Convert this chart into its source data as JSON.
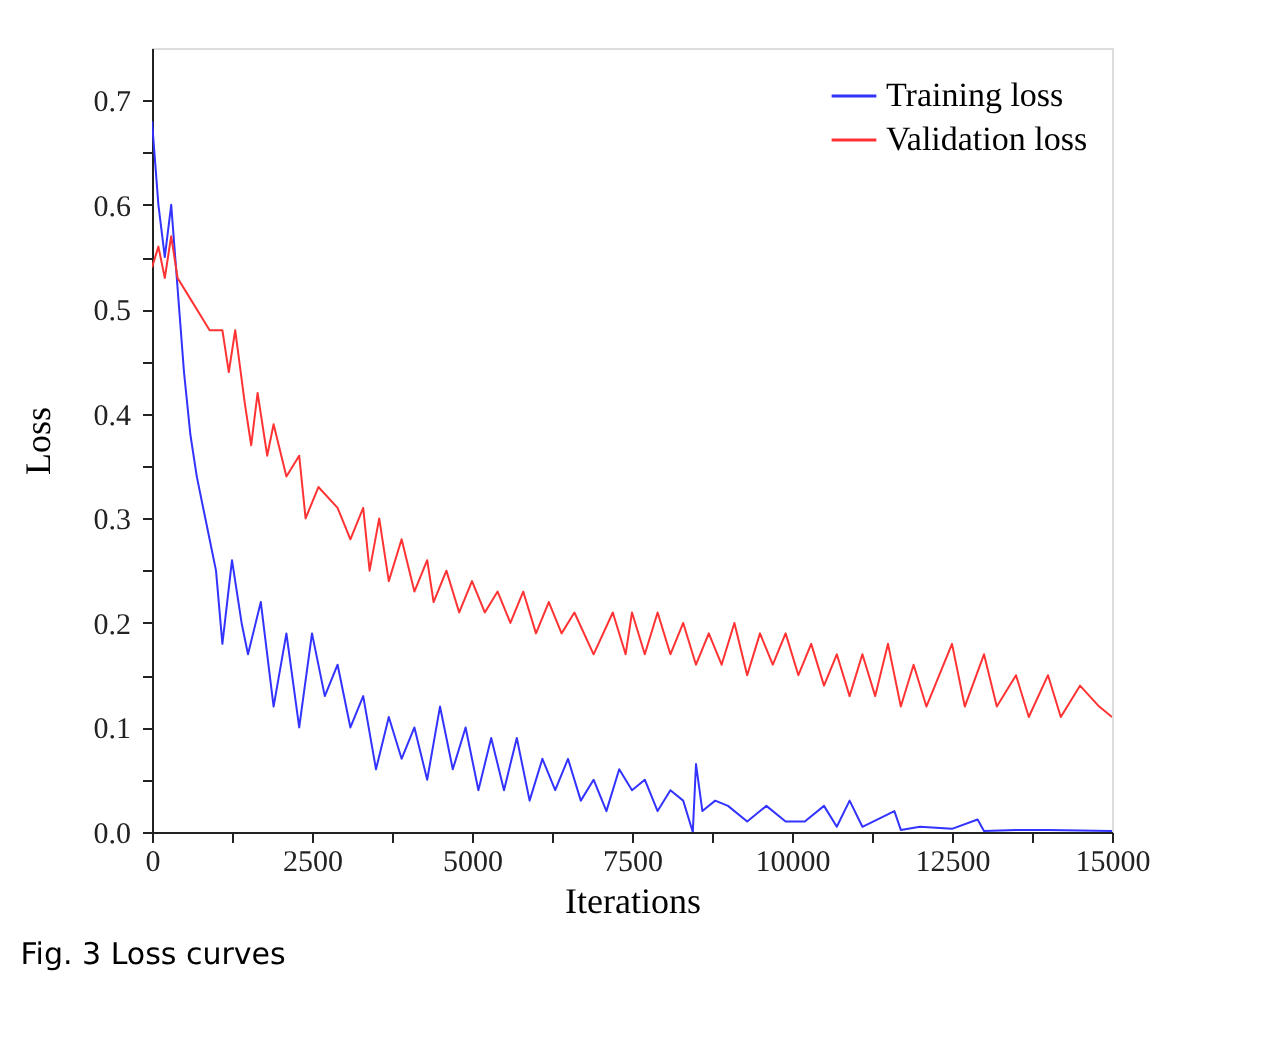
{
  "chart_data": {
    "type": "line",
    "xlabel": "Iterations",
    "ylabel": "Loss",
    "annotations": [
      "Fig. 3  Loss curves"
    ],
    "xlim": [
      0,
      15000
    ],
    "xticks": [
      0,
      {
        "value": 1250,
        "label": null
      },
      2500,
      {
        "value": 3750,
        "label": null
      },
      5000,
      {
        "value": 6250,
        "label": null
      },
      7500,
      {
        "value": 8750,
        "label": null
      },
      10000,
      {
        "value": 11250,
        "label": null
      },
      12500,
      {
        "value": 13750,
        "label": null
      },
      15000
    ],
    "ylim": [
      0,
      0.75
    ],
    "yticks": [
      {
        "value": 0,
        "label": "0.0"
      },
      {
        "value": 0.05,
        "label": null
      },
      0.1,
      {
        "value": 0.15,
        "label": null
      },
      0.2,
      {
        "value": 0.25,
        "label": null
      },
      0.3,
      {
        "value": 0.35,
        "label": null
      },
      0.4,
      {
        "value": 0.45,
        "label": null
      },
      0.5,
      {
        "value": 0.55,
        "label": null
      },
      0.6,
      {
        "value": 0.65,
        "label": null
      },
      0.7
    ],
    "grid": false,
    "legend": "top right",
    "line_style": "solid",
    "marker": "none",
    "series": [
      {
        "name": "Training loss",
        "color": "#3333ff",
        "x": [
          0,
          100,
          200,
          300,
          400,
          500,
          600,
          700,
          800,
          900,
          1000,
          1100,
          1250,
          1400,
          1500,
          1700,
          1900,
          2100,
          2300,
          2500,
          2700,
          2900,
          3100,
          3300,
          3500,
          3700,
          3900,
          4100,
          4300,
          4500,
          4700,
          4900,
          5100,
          5300,
          5500,
          5700,
          5900,
          6100,
          6300,
          6500,
          6700,
          6900,
          7100,
          7300,
          7500,
          7700,
          7900,
          8100,
          8300,
          8450,
          8500,
          8600,
          8800,
          9000,
          9300,
          9600,
          9900,
          10200,
          10500,
          10700,
          10900,
          11100,
          11600,
          11700,
          12000,
          12500,
          12900,
          13000,
          13500,
          14000,
          15000
        ],
        "values": [
          0.68,
          0.6,
          0.55,
          0.6,
          0.52,
          0.44,
          0.38,
          0.34,
          0.31,
          0.28,
          0.25,
          0.18,
          0.26,
          0.2,
          0.17,
          0.22,
          0.12,
          0.19,
          0.1,
          0.19,
          0.13,
          0.16,
          0.1,
          0.13,
          0.06,
          0.11,
          0.07,
          0.1,
          0.05,
          0.12,
          0.06,
          0.1,
          0.04,
          0.09,
          0.04,
          0.09,
          0.03,
          0.07,
          0.04,
          0.07,
          0.03,
          0.05,
          0.02,
          0.06,
          0.04,
          0.05,
          0.02,
          0.04,
          0.03,
          0.0,
          0.065,
          0.02,
          0.03,
          0.025,
          0.01,
          0.025,
          0.01,
          0.01,
          0.025,
          0.005,
          0.03,
          0.005,
          0.02,
          0.002,
          0.005,
          0.003,
          0.012,
          0.001,
          0.002,
          0.002,
          0.001
        ]
      },
      {
        "name": "Validation loss",
        "color": "#ff3333",
        "x": [
          0,
          100,
          200,
          300,
          400,
          600,
          800,
          900,
          1100,
          1200,
          1300,
          1450,
          1550,
          1650,
          1800,
          1900,
          2100,
          2300,
          2400,
          2600,
          2900,
          3100,
          3300,
          3400,
          3550,
          3700,
          3900,
          4100,
          4300,
          4400,
          4600,
          4800,
          5000,
          5200,
          5400,
          5600,
          5800,
          6000,
          6200,
          6400,
          6600,
          6900,
          7200,
          7400,
          7500,
          7700,
          7900,
          8100,
          8300,
          8500,
          8700,
          8900,
          9100,
          9300,
          9500,
          9700,
          9900,
          10100,
          10300,
          10500,
          10700,
          10900,
          11100,
          11300,
          11500,
          11700,
          11900,
          12100,
          12500,
          12700,
          13000,
          13200,
          13500,
          13700,
          14000,
          14200,
          14500,
          14800,
          15000
        ],
        "values": [
          0.54,
          0.56,
          0.53,
          0.57,
          0.53,
          0.51,
          0.49,
          0.48,
          0.48,
          0.44,
          0.48,
          0.41,
          0.37,
          0.42,
          0.36,
          0.39,
          0.34,
          0.36,
          0.3,
          0.33,
          0.31,
          0.28,
          0.31,
          0.25,
          0.3,
          0.24,
          0.28,
          0.23,
          0.26,
          0.22,
          0.25,
          0.21,
          0.24,
          0.21,
          0.23,
          0.2,
          0.23,
          0.19,
          0.22,
          0.19,
          0.21,
          0.17,
          0.21,
          0.17,
          0.21,
          0.17,
          0.21,
          0.17,
          0.2,
          0.16,
          0.19,
          0.16,
          0.2,
          0.15,
          0.19,
          0.16,
          0.19,
          0.15,
          0.18,
          0.14,
          0.17,
          0.13,
          0.17,
          0.13,
          0.18,
          0.12,
          0.16,
          0.12,
          0.18,
          0.12,
          0.17,
          0.12,
          0.15,
          0.11,
          0.15,
          0.11,
          0.14,
          0.12,
          0.11
        ]
      }
    ]
  }
}
